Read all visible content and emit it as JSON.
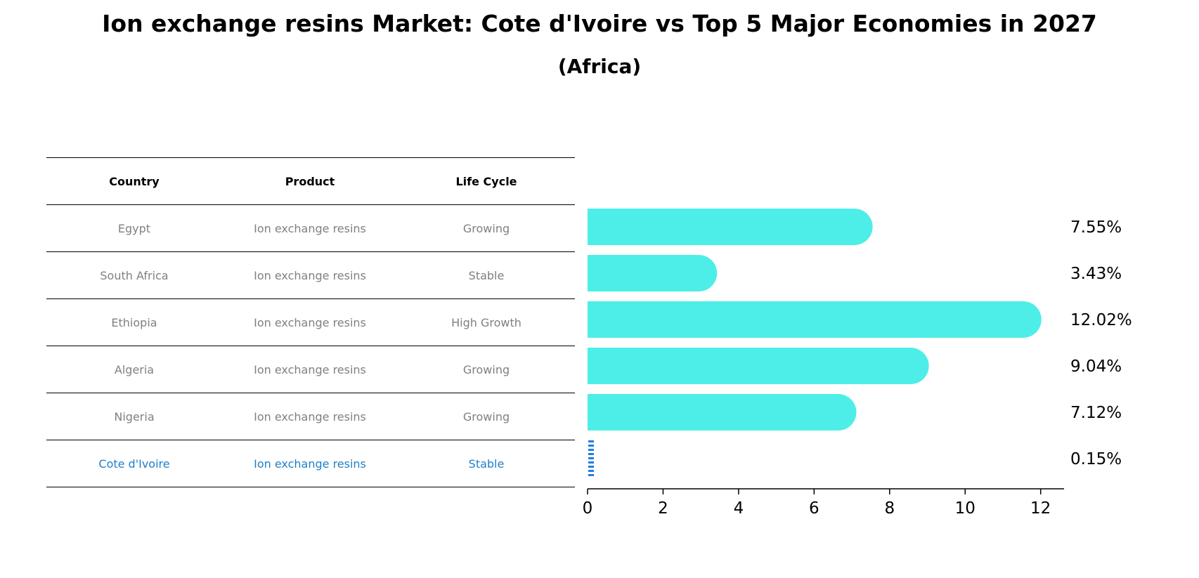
{
  "title": "Ion exchange resins Market: Cote d'Ivoire vs Top 5 Major Economies in 2027",
  "subtitle": "(Africa)",
  "table": {
    "headers": [
      "Country",
      "Product",
      "Life Cycle"
    ],
    "rows": [
      {
        "country": "Egypt",
        "product": "Ion exchange resins",
        "life_cycle": "Growing"
      },
      {
        "country": "South Africa",
        "product": "Ion exchange resins",
        "life_cycle": "Stable"
      },
      {
        "country": "Ethiopia",
        "product": "Ion exchange resins",
        "life_cycle": "High Growth"
      },
      {
        "country": "Algeria",
        "product": "Ion exchange resins",
        "life_cycle": "Growing"
      },
      {
        "country": "Nigeria",
        "product": "Ion exchange resins",
        "life_cycle": "Growing"
      },
      {
        "country": "Cote d'Ivoire",
        "product": "Ion exchange resins",
        "life_cycle": "Stable"
      }
    ]
  },
  "chart_data": {
    "type": "bar",
    "orientation": "horizontal",
    "categories": [
      "Egypt",
      "South Africa",
      "Ethiopia",
      "Algeria",
      "Nigeria",
      "Cote d'Ivoire"
    ],
    "values": [
      7.55,
      3.43,
      12.02,
      9.04,
      7.12,
      0.15
    ],
    "value_labels": [
      "7.55%",
      "3.43%",
      "12.02%",
      "9.04%",
      "7.12%",
      "0.15%"
    ],
    "xlim": [
      0,
      12.62
    ],
    "xticks": [
      0,
      2,
      4,
      6,
      8,
      10,
      12
    ],
    "xlabel": "",
    "ylabel": "",
    "grid": false,
    "colors": {
      "bar": "#4eeee8",
      "highlight_bar": "#1e7fe0",
      "highlight_text": "#1f80c8",
      "row_text": "#808080"
    }
  }
}
